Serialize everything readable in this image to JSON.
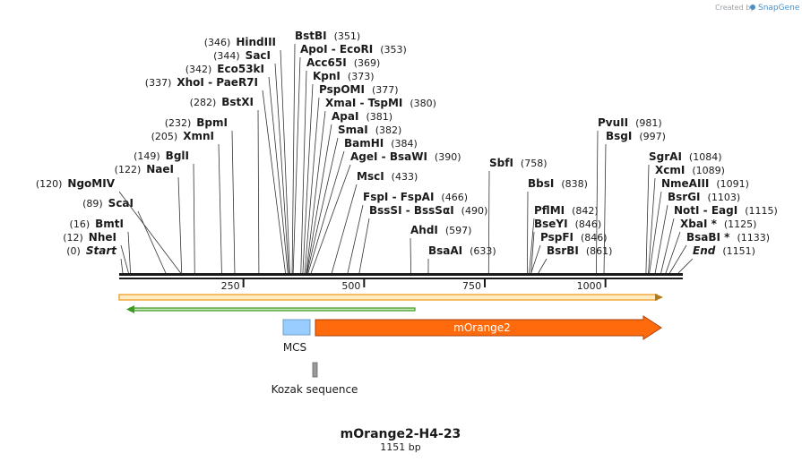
{
  "map": {
    "title": "mOrange2-H4-23",
    "length_label": "1151 bp",
    "length": 1151
  },
  "credit": {
    "text": "Created by",
    "brand": "SnapGene"
  },
  "ruler": {
    "ticks": [
      {
        "value": 250,
        "label": "250"
      },
      {
        "value": 500,
        "label": "500"
      },
      {
        "value": 750,
        "label": "750"
      },
      {
        "value": 1000,
        "label": "1000"
      }
    ]
  },
  "sites": [
    {
      "name": "Start",
      "pos": 0,
      "pos_label": "(0)",
      "italic": true
    },
    {
      "name": "NheI",
      "pos": 12,
      "pos_label": "(12)"
    },
    {
      "name": "BmtI",
      "pos": 16,
      "pos_label": "(16)"
    },
    {
      "name": "ScaI",
      "pos": 89,
      "pos_label": "(89)"
    },
    {
      "name": "NgoMIV",
      "pos": 120,
      "pos_label": "(120)"
    },
    {
      "name": "NaeI",
      "pos": 122,
      "pos_label": "(122)"
    },
    {
      "name": "BglI",
      "pos": 149,
      "pos_label": "(149)"
    },
    {
      "name": "XmnI",
      "pos": 205,
      "pos_label": "(205)"
    },
    {
      "name": "BpmI",
      "pos": 232,
      "pos_label": "(232)"
    },
    {
      "name": "BstXI",
      "pos": 282,
      "pos_label": "(282)"
    },
    {
      "name": "XhoI  -  PaeR7I",
      "pos": 337,
      "pos_label": "(337)"
    },
    {
      "name": "Eco53kI",
      "pos": 342,
      "pos_label": "(342)"
    },
    {
      "name": "SacI",
      "pos": 344,
      "pos_label": "(344)"
    },
    {
      "name": "HindIII",
      "pos": 346,
      "pos_label": "(346)"
    },
    {
      "name": "BstBI",
      "pos": 351,
      "pos_label": "(351)"
    },
    {
      "name": "ApoI  -  EcoRI",
      "pos": 353,
      "pos_label": "(353)"
    },
    {
      "name": "Acc65I",
      "pos": 369,
      "pos_label": "(369)"
    },
    {
      "name": "KpnI",
      "pos": 373,
      "pos_label": "(373)"
    },
    {
      "name": "PspOMI",
      "pos": 377,
      "pos_label": "(377)"
    },
    {
      "name": "XmaI  -  TspMI",
      "pos": 380,
      "pos_label": "(380)"
    },
    {
      "name": "ApaI",
      "pos": 381,
      "pos_label": "(381)"
    },
    {
      "name": "SmaI",
      "pos": 382,
      "pos_label": "(382)"
    },
    {
      "name": "BamHI",
      "pos": 384,
      "pos_label": "(384)"
    },
    {
      "name": "AgeI  -  BsaWI",
      "pos": 390,
      "pos_label": "(390)"
    },
    {
      "name": "MscI",
      "pos": 433,
      "pos_label": "(433)"
    },
    {
      "name": "FspI  -  FspAI",
      "pos": 466,
      "pos_label": "(466)"
    },
    {
      "name": "BssSI  -  BssSαI",
      "pos": 490,
      "pos_label": "(490)"
    },
    {
      "name": "AhdI",
      "pos": 597,
      "pos_label": "(597)"
    },
    {
      "name": "BsaAI",
      "pos": 633,
      "pos_label": "(633)"
    },
    {
      "name": "SbfI",
      "pos": 758,
      "pos_label": "(758)"
    },
    {
      "name": "BbsI",
      "pos": 838,
      "pos_label": "(838)"
    },
    {
      "name": "PflMI",
      "pos": 842,
      "pos_label": "(842)"
    },
    {
      "name": "BseYI",
      "pos": 846,
      "pos_label": "(846)"
    },
    {
      "name": "PspFI",
      "pos": 846,
      "pos_label": "(846)"
    },
    {
      "name": "BsrBI",
      "pos": 861,
      "pos_label": "(861)"
    },
    {
      "name": "PvuII",
      "pos": 981,
      "pos_label": "(981)"
    },
    {
      "name": "BsgI",
      "pos": 997,
      "pos_label": "(997)"
    },
    {
      "name": "SgrAI",
      "pos": 1084,
      "pos_label": "(1084)"
    },
    {
      "name": "XcmI",
      "pos": 1089,
      "pos_label": "(1089)"
    },
    {
      "name": "NmeAIII",
      "pos": 1091,
      "pos_label": "(1091)"
    },
    {
      "name": "BsrGI",
      "pos": 1103,
      "pos_label": "(1103)"
    },
    {
      "name": "NotI  -  EagI",
      "pos": 1115,
      "pos_label": "(1115)"
    },
    {
      "name": "XbaI *",
      "pos": 1125,
      "pos_label": "(1125)"
    },
    {
      "name": "BsaBI *",
      "pos": 1133,
      "pos_label": "(1133)"
    },
    {
      "name": "End",
      "pos": 1151,
      "pos_label": "(1151)",
      "italic": true
    }
  ],
  "features": {
    "orf": {
      "start": 0,
      "end": 1151,
      "direction": "forward",
      "color": "#f2a93b"
    },
    "orf_reverse": {
      "start": 16,
      "end": 597,
      "direction": "reverse",
      "color": "#3d9b1f"
    },
    "mcs": {
      "name": "MCS",
      "start": 337,
      "end": 390,
      "color": "#99ccff"
    },
    "morange2": {
      "name": "mOrange2",
      "start": 398,
      "end": 1107,
      "color": "#ff6a0d"
    },
    "kozak": {
      "name": "Kozak sequence",
      "start": 390,
      "end": 398,
      "color": "#999999"
    }
  },
  "colors": {
    "backbone": "#1a1a1a",
    "site_line": "#333333"
  }
}
